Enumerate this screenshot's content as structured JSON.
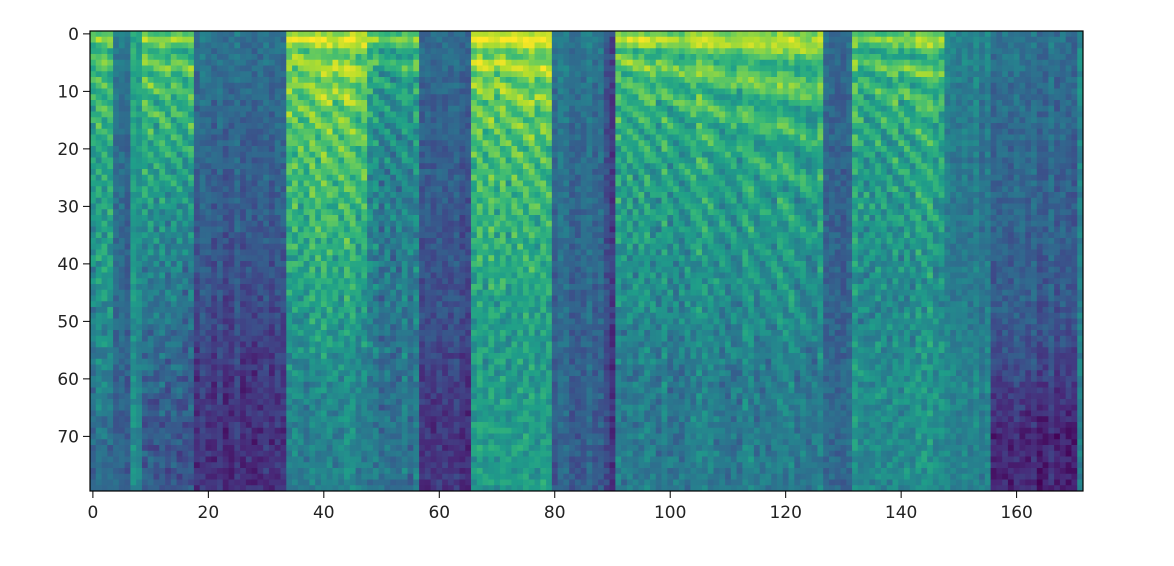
{
  "chart_data": {
    "type": "heatmap",
    "colormap": "viridis",
    "title": "",
    "xlabel": "",
    "ylabel": "",
    "n_columns": 172,
    "n_rows": 80,
    "xlim": [
      -0.5,
      171.5
    ],
    "ylim": [
      79.5,
      -0.5
    ],
    "y_axis_inverted": true,
    "grid": false,
    "xticks": [
      0,
      20,
      40,
      60,
      80,
      100,
      120,
      140,
      160
    ],
    "yticks": [
      0,
      10,
      20,
      30,
      40,
      50,
      60,
      70
    ],
    "value_range": [
      0,
      1
    ],
    "segments_note_units": "columns x0..x1; profile = mean normalized intensity for row bands 0-9,10-19,...,70-79",
    "segments": [
      {
        "x0": 0,
        "x1": 3,
        "voiced": true,
        "profile": [
          0.72,
          0.65,
          0.58,
          0.55,
          0.52,
          0.48,
          0.42,
          0.35
        ]
      },
      {
        "x0": 4,
        "x1": 6,
        "voiced": false,
        "profile": [
          0.4,
          0.35,
          0.33,
          0.32,
          0.3,
          0.3,
          0.28,
          0.28
        ]
      },
      {
        "x0": 7,
        "x1": 8,
        "voiced": false,
        "profile": [
          0.6,
          0.58,
          0.55,
          0.55,
          0.52,
          0.5,
          0.5,
          0.48
        ]
      },
      {
        "x0": 9,
        "x1": 17,
        "voiced": true,
        "profile": [
          0.72,
          0.66,
          0.58,
          0.5,
          0.42,
          0.36,
          0.3,
          0.25
        ]
      },
      {
        "x0": 18,
        "x1": 33,
        "voiced": false,
        "profile": [
          0.38,
          0.34,
          0.32,
          0.3,
          0.26,
          0.22,
          0.16,
          0.14
        ]
      },
      {
        "x0": 34,
        "x1": 47,
        "voiced": true,
        "profile": [
          0.85,
          0.78,
          0.72,
          0.66,
          0.62,
          0.55,
          0.48,
          0.45
        ]
      },
      {
        "x0": 48,
        "x1": 56,
        "voiced": true,
        "profile": [
          0.7,
          0.55,
          0.48,
          0.44,
          0.42,
          0.4,
          0.38,
          0.38
        ]
      },
      {
        "x0": 57,
        "x1": 65,
        "voiced": false,
        "profile": [
          0.36,
          0.32,
          0.3,
          0.28,
          0.26,
          0.24,
          0.18,
          0.15
        ]
      },
      {
        "x0": 66,
        "x1": 79,
        "voiced": true,
        "profile": [
          0.88,
          0.78,
          0.7,
          0.66,
          0.62,
          0.55,
          0.55,
          0.55
        ]
      },
      {
        "x0": 80,
        "x1": 88,
        "voiced": false,
        "profile": [
          0.42,
          0.38,
          0.36,
          0.35,
          0.34,
          0.33,
          0.32,
          0.3
        ]
      },
      {
        "x0": 89,
        "x1": 90,
        "voiced": false,
        "profile": [
          0.25,
          0.22,
          0.2,
          0.2,
          0.2,
          0.2,
          0.18,
          0.18
        ]
      },
      {
        "x0": 91,
        "x1": 126,
        "voiced": true,
        "profile": [
          0.8,
          0.68,
          0.6,
          0.56,
          0.52,
          0.48,
          0.42,
          0.42
        ]
      },
      {
        "x0": 127,
        "x1": 131,
        "voiced": false,
        "profile": [
          0.34,
          0.32,
          0.3,
          0.3,
          0.3,
          0.3,
          0.32,
          0.32
        ]
      },
      {
        "x0": 132,
        "x1": 147,
        "voiced": true,
        "profile": [
          0.74,
          0.66,
          0.6,
          0.56,
          0.52,
          0.48,
          0.52,
          0.5
        ]
      },
      {
        "x0": 148,
        "x1": 155,
        "voiced": false,
        "profile": [
          0.46,
          0.42,
          0.4,
          0.4,
          0.4,
          0.42,
          0.46,
          0.44
        ]
      },
      {
        "x0": 156,
        "x1": 170,
        "voiced": false,
        "profile": [
          0.38,
          0.35,
          0.33,
          0.32,
          0.3,
          0.28,
          0.2,
          0.1
        ]
      },
      {
        "x0": 171,
        "x1": 171,
        "voiced": false,
        "profile": [
          0.45,
          0.45,
          0.42,
          0.42,
          0.4,
          0.4,
          0.4,
          0.4
        ]
      }
    ]
  }
}
